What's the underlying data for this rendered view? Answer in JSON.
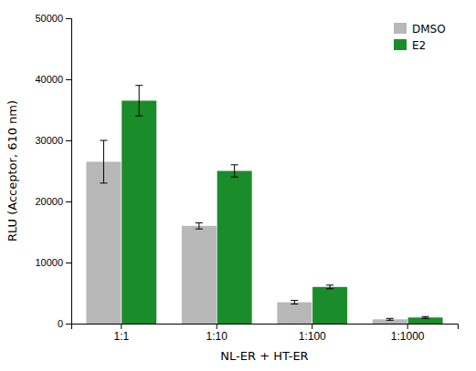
{
  "chart_data": {
    "type": "bar",
    "categories": [
      "1:1",
      "1:10",
      "1:100",
      "1:1000"
    ],
    "series": [
      {
        "name": "DMSO",
        "color": "#b8b8b8",
        "values": [
          26500,
          16000,
          3500,
          700
        ],
        "errors": [
          3500,
          500,
          300,
          150
        ]
      },
      {
        "name": "E2",
        "color": "#1a8c2a",
        "values": [
          36500,
          25000,
          6000,
          1000
        ],
        "errors": [
          2500,
          1000,
          300,
          150
        ]
      }
    ],
    "xlabel": "NL-ER + HT-ER",
    "ylabel": "RLU (Acceptor, 610 nm)",
    "ylim": [
      0,
      50000
    ],
    "yticks": [
      0,
      10000,
      20000,
      30000,
      40000,
      50000
    ],
    "legend": "upper right",
    "grid": false
  }
}
